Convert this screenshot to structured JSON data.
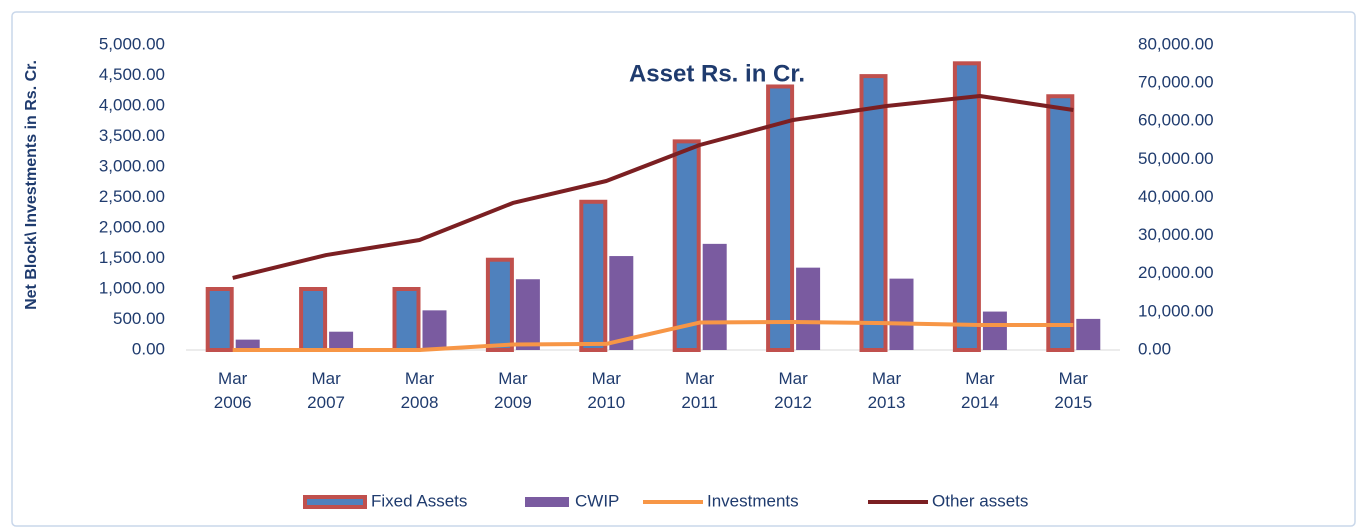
{
  "chart_data": {
    "type": "bar",
    "title": "Asset Rs. in Cr.",
    "y_label": "Net Block\\ Investments in Rs. Cr.",
    "categories": [
      "Mar 2006",
      "Mar 2007",
      "Mar 2008",
      "Mar 2009",
      "Mar 2010",
      "Mar 2011",
      "Mar 2012",
      "Mar 2013",
      "Mar 2014",
      "Mar 2015"
    ],
    "series": [
      {
        "name": "Fixed Assets",
        "type": "bar",
        "color": "#4f81bd",
        "border_color": "#c0504d",
        "values": [
          1000,
          1000,
          1000,
          1480,
          2430,
          3420,
          4320,
          4490,
          4700,
          4160
        ]
      },
      {
        "name": "CWIP",
        "type": "bar",
        "color": "#7a5ba0",
        "values": [
          170,
          300,
          650,
          1160,
          1540,
          1740,
          1350,
          1170,
          630,
          510
        ]
      },
      {
        "name": "Investments",
        "type": "line",
        "color": "#f79646",
        "values": [
          0,
          0,
          0,
          90,
          100,
          450,
          460,
          440,
          410,
          410
        ]
      },
      {
        "name": "Other assets",
        "type": "line",
        "color": "#7b1f22",
        "axis": "y2",
        "values": [
          18900,
          24900,
          28850,
          38560,
          44330,
          53770,
          60330,
          64000,
          66620,
          62950
        ]
      }
    ],
    "ylim": [
      0,
      5000
    ],
    "yticks": [
      {
        "value": 0,
        "label": "0.00"
      },
      {
        "value": 500,
        "label": "500.00"
      },
      {
        "value": 1000,
        "label": "1,000.00"
      },
      {
        "value": 1500,
        "label": "1,500.00"
      },
      {
        "value": 2000,
        "label": "2,000.00"
      },
      {
        "value": 2500,
        "label": "2,500.00"
      },
      {
        "value": 3000,
        "label": "3,000.00"
      },
      {
        "value": 3500,
        "label": "3,500.00"
      },
      {
        "value": 4000,
        "label": "4,000.00"
      },
      {
        "value": 4500,
        "label": "4,500.00"
      },
      {
        "value": 5000,
        "label": "5,000.00"
      }
    ],
    "y2lim": [
      0,
      80000
    ],
    "y2ticks": [
      {
        "value": 0,
        "label": "0.00"
      },
      {
        "value": 10000,
        "label": "10,000.00"
      },
      {
        "value": 20000,
        "label": "20,000.00"
      },
      {
        "value": 30000,
        "label": "30,000.00"
      },
      {
        "value": 40000,
        "label": "40,000.00"
      },
      {
        "value": 50000,
        "label": "50,000.00"
      },
      {
        "value": 60000,
        "label": "60,000.00"
      },
      {
        "value": 70000,
        "label": "70,000.00"
      },
      {
        "value": 80000,
        "label": "80,000.00"
      }
    ],
    "grid": false,
    "legend": "bottom"
  }
}
